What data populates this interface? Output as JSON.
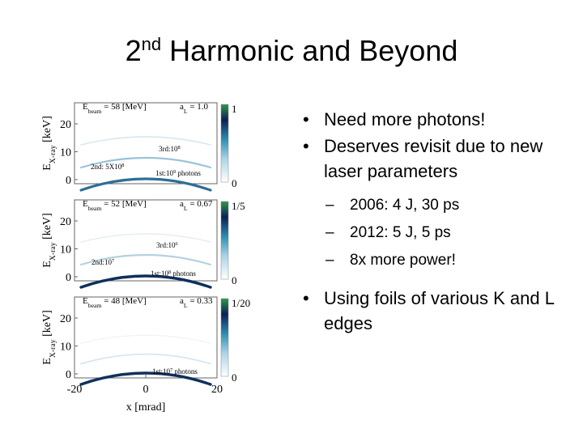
{
  "title": {
    "base": "2",
    "sup": "nd",
    "rest": "Harmonic and Beyond"
  },
  "bullets": [
    {
      "text": "Need more photons!"
    },
    {
      "text": "Deserves revisit due to new laser parameters",
      "sub": [
        "2006: 4 J, 30 ps",
        "2012: 5 J, 5 ps",
        "8x more power!"
      ]
    },
    {
      "text": "Using foils of various K and L edges"
    }
  ],
  "figure": {
    "y_label": {
      "base": "E",
      "sub": "X-ray",
      "rest": " [keV]"
    },
    "y_ticks": [
      "20",
      "10",
      "0"
    ],
    "x_ticks": [
      "-20",
      "0",
      "20"
    ],
    "x_label": "x [mrad]",
    "panels": [
      {
        "beam": {
          "base": "E",
          "sub": "beam",
          "rest": " = 58 [MeV]"
        },
        "a": {
          "base": "a",
          "sub": "L",
          "rest": " = 1.0"
        },
        "colorbar": [
          "1",
          "0"
        ],
        "annotations": [
          {
            "base": "3rd:10",
            "sup": "8"
          },
          {
            "base": "2nd: 5X10",
            "sup": "8"
          },
          {
            "base": "1st:10",
            "sup": "9",
            "rest": " photons"
          }
        ]
      },
      {
        "beam": {
          "base": "E",
          "sub": "beam",
          "rest": " = 52 [MeV]"
        },
        "a": {
          "base": "a",
          "sub": "L",
          "rest": " = 0.67"
        },
        "colorbar": [
          "1/5",
          "0"
        ],
        "annotations": [
          {
            "base": "3rd:10",
            "sup": "6"
          },
          {
            "base": "2nd:10",
            "sup": "7"
          },
          {
            "base": "1st:10",
            "sup": "8",
            "rest": " photons"
          }
        ]
      },
      {
        "beam": {
          "base": "E",
          "sub": "beam",
          "rest": " = 48 [MeV]"
        },
        "a": {
          "base": "a",
          "sub": "L",
          "rest": " = 0.33"
        },
        "colorbar": [
          "1/20",
          "0"
        ],
        "annotations": [
          {
            "base": "1st:10",
            "sup": "7",
            "rest": " photons"
          }
        ]
      }
    ]
  }
}
